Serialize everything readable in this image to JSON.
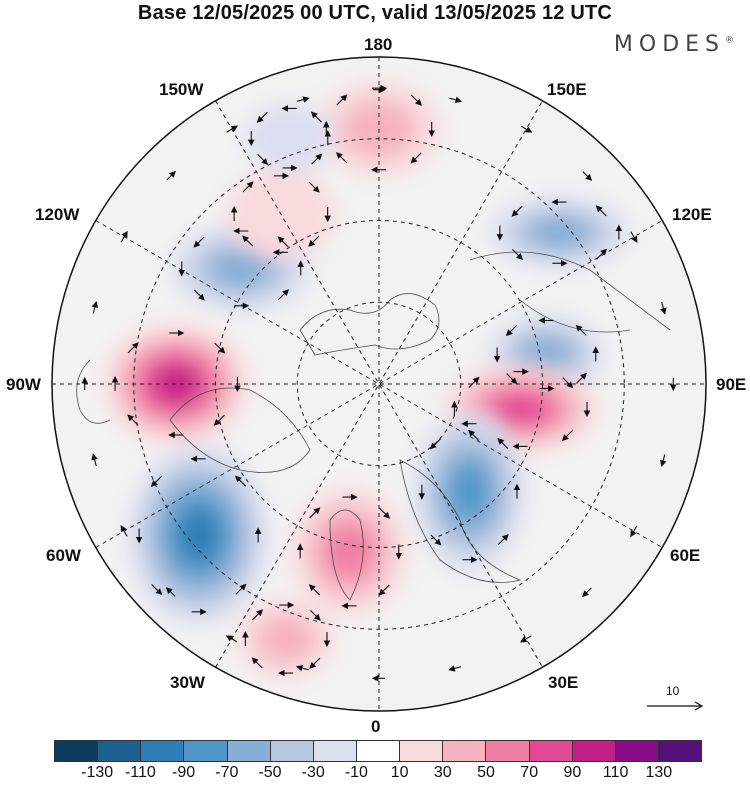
{
  "title": "Base 12/05/2025 00 UTC, valid 13/05/2025 12 UTC",
  "brand": "MODES",
  "brand_mark": "®",
  "longitude_labels": {
    "top": "180",
    "top_left": "150W",
    "top_right": "150E",
    "left_upper": "120W",
    "right_upper": "120E",
    "left": "90W",
    "right": "90E",
    "left_lower": "60W",
    "right_lower": "60E",
    "bottom_left": "30W",
    "bottom_right": "30E",
    "bottom": "0"
  },
  "vector_reference": "10",
  "colorbar": {
    "colors": [
      "#0d3b5e",
      "#1d5f8f",
      "#2e7db5",
      "#4d98c9",
      "#86aed6",
      "#b8c7e0",
      "#dcdff0",
      "#ffffff",
      "#f9dadd",
      "#f5b3c0",
      "#f07fa4",
      "#e24a95",
      "#c41e88",
      "#8a0c86",
      "#55107a"
    ],
    "ticks": [
      "-130",
      "-110",
      "-90",
      "-70",
      "-50",
      "-30",
      "-10",
      "10",
      "30",
      "50",
      "70",
      "90",
      "110",
      "130"
    ]
  },
  "anomaly_features": [
    {
      "sign": "positive",
      "level": 2,
      "near": "180"
    },
    {
      "sign": "negative",
      "level": 3,
      "near": "130E"
    },
    {
      "sign": "negative",
      "level": 3,
      "near": "100E"
    },
    {
      "sign": "positive",
      "level": 4,
      "near": "80E"
    },
    {
      "sign": "negative",
      "level": 4,
      "near": "40E"
    },
    {
      "sign": "positive",
      "level": 3,
      "near": "10W"
    },
    {
      "sign": "positive",
      "level": 2,
      "near": "20W"
    },
    {
      "sign": "negative",
      "level": 5,
      "near": "50W"
    },
    {
      "sign": "positive",
      "level": 5,
      "near": "90W"
    },
    {
      "sign": "negative",
      "level": 3,
      "near": "130W"
    },
    {
      "sign": "positive",
      "level": 1,
      "near": "150W"
    },
    {
      "sign": "negative",
      "level": 1,
      "near": "160W"
    }
  ]
}
